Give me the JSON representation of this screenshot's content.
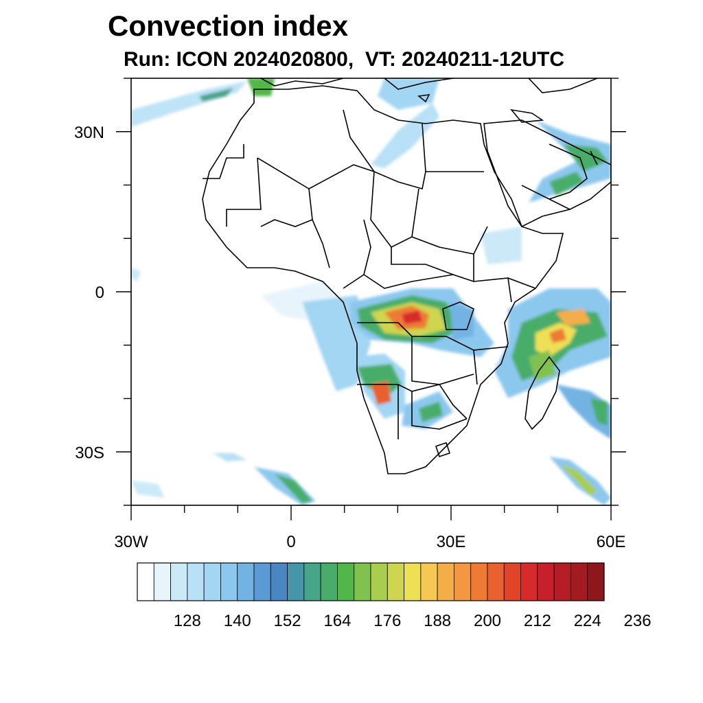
{
  "title": "Convection index",
  "subtitle": "Run: ICON 2024020800,  VT: 20240211-12UTC",
  "map": {
    "lon_range": [
      -30,
      60
    ],
    "lat_range": [
      -40,
      40
    ],
    "lon_ticks": [
      {
        "value": -30,
        "label": "30W"
      },
      {
        "value": 0,
        "label": "0"
      },
      {
        "value": 30,
        "label": "30E"
      },
      {
        "value": 60,
        "label": "60E"
      }
    ],
    "lat_ticks": [
      {
        "value": 30,
        "label": "30N"
      },
      {
        "value": 0,
        "label": "0"
      },
      {
        "value": -30,
        "label": "30S"
      }
    ],
    "coastline_color": "#000000",
    "background_color": "#ffffff"
  },
  "colorbar": {
    "colors": [
      "#ffffff",
      "#e8f4fc",
      "#cce9f8",
      "#b8e0f6",
      "#a2d6f3",
      "#8cc8ee",
      "#72b3e4",
      "#5a9bd4",
      "#4a87c2",
      "#4695a8",
      "#47a58a",
      "#48ad6a",
      "#52b64a",
      "#80c250",
      "#a9cd4e",
      "#cdd64e",
      "#eee054",
      "#f6c752",
      "#f4ae48",
      "#f39840",
      "#ef7a36",
      "#e8612e",
      "#e0452a",
      "#d72b2b",
      "#c7202a",
      "#b51c25",
      "#a31a21",
      "#8c171c"
    ],
    "labels": [
      "128",
      "140",
      "152",
      "164",
      "176",
      "188",
      "200",
      "212",
      "224",
      "236"
    ]
  }
}
